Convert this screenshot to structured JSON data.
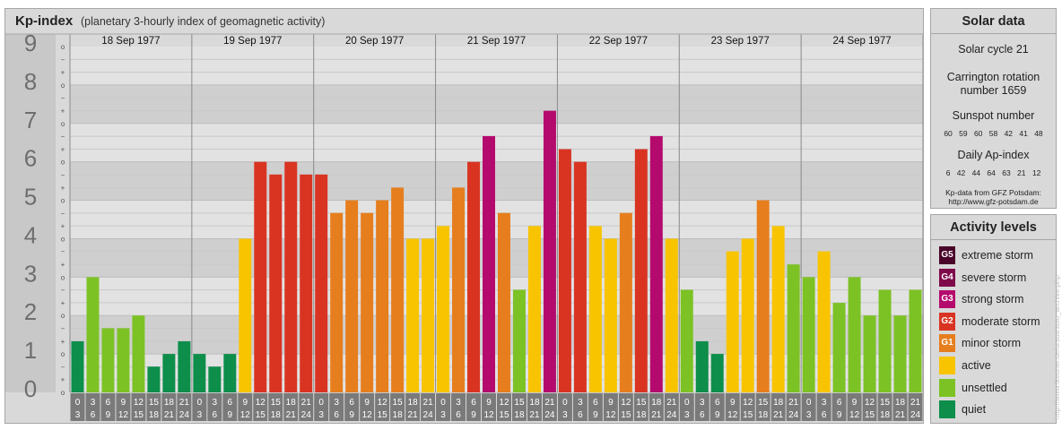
{
  "header": {
    "title": "Kp-index",
    "subtitle": "(planetary 3-hourly index of geomagnetic activity)"
  },
  "chart_data": {
    "type": "bar",
    "title": "Kp-index",
    "subtitle": "(planetary 3-hourly index of geomagnetic activity)",
    "ylim": [
      0,
      9
    ],
    "y_ticks": [
      "0",
      "1",
      "2",
      "3",
      "4",
      "5",
      "6",
      "7",
      "8",
      "9"
    ],
    "y_minor_labels": [
      "+",
      "o",
      "−"
    ],
    "days": [
      "18 Sep 1977",
      "19 Sep 1977",
      "20 Sep 1977",
      "21 Sep 1977",
      "22 Sep 1977",
      "23 Sep 1977",
      "24 Sep 1977"
    ],
    "x_tick_top": [
      "0",
      "3",
      "6",
      "9",
      "12",
      "15",
      "18",
      "21"
    ],
    "x_tick_bottom": [
      "3",
      "6",
      "9",
      "12",
      "15",
      "18",
      "21",
      "24"
    ],
    "values": [
      [
        1.33,
        3.0,
        1.67,
        1.67,
        2.0,
        0.67,
        1.0,
        1.33
      ],
      [
        1.0,
        0.67,
        1.0,
        4.0,
        6.0,
        5.67,
        6.0,
        5.67
      ],
      [
        5.67,
        4.67,
        5.0,
        4.67,
        5.0,
        5.33,
        4.0,
        4.0
      ],
      [
        4.33,
        5.33,
        6.0,
        6.67,
        4.67,
        2.67,
        4.33,
        7.33
      ],
      [
        6.33,
        6.0,
        4.33,
        4.0,
        4.67,
        6.33,
        6.67,
        4.0
      ],
      [
        2.67,
        1.33,
        1.0,
        3.67,
        4.0,
        5.0,
        4.33,
        3.33
      ],
      [
        3.0,
        3.67,
        2.33,
        3.0,
        2.0,
        2.67,
        2.0,
        2.67
      ]
    ],
    "grid": true
  },
  "solar": {
    "title": "Solar data",
    "cycle": "Solar cycle 21",
    "carrington_label": "Carrington rotation",
    "carrington_number": "number 1659",
    "sunspot_label": "Sunspot number",
    "sunspot_values": "60 59 60 58 42 41 48",
    "ap_label": "Daily Ap-index",
    "ap_values": "6 42 44 64 63 21 12",
    "credit_line1": "Kp-data from GFZ Potsdam:",
    "credit_line2": "http://www.gfz-potsdam.de"
  },
  "activity": {
    "title": "Activity levels",
    "levels": [
      {
        "badge": "G5",
        "label": "extreme storm",
        "color": "#4a0429"
      },
      {
        "badge": "G4",
        "label": "severe storm",
        "color": "#7f0a4a"
      },
      {
        "badge": "G3",
        "label": "strong storm",
        "color": "#b40a6d"
      },
      {
        "badge": "G2",
        "label": "moderate storm",
        "color": "#d93422"
      },
      {
        "badge": "G1",
        "label": "minor storm",
        "color": "#e67e1e"
      },
      {
        "badge": "",
        "label": "active",
        "color": "#f8c400"
      },
      {
        "badge": "",
        "label": "unsettled",
        "color": "#7cc225"
      },
      {
        "badge": "",
        "label": "quiet",
        "color": "#0d8e4a"
      }
    ]
  },
  "watermark": "http://www.tkeuner.de/ursus/solo_archive.php"
}
